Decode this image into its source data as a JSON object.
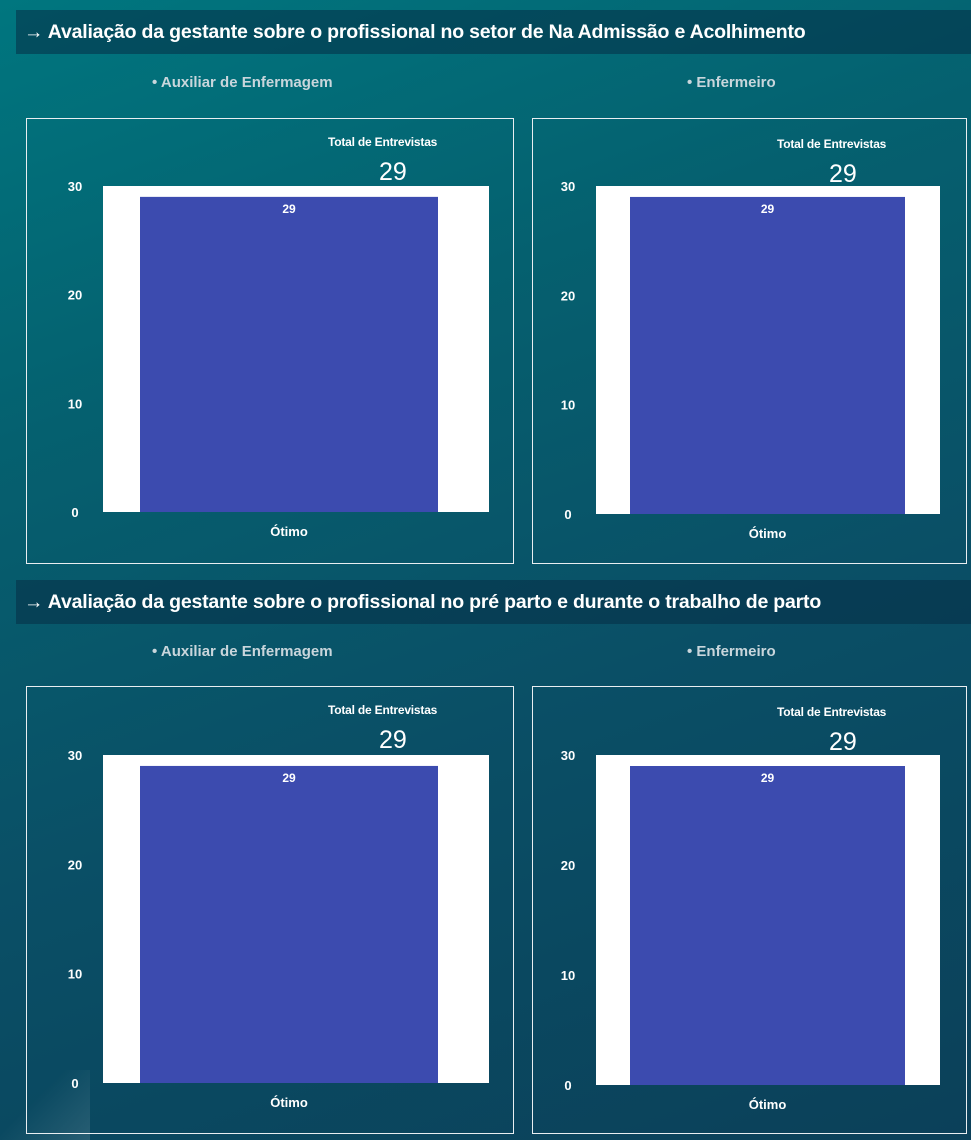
{
  "sections": [
    {
      "title": "→ Avaliação da gestante sobre o profissional  no setor de Na Admissão e Acolhimento",
      "panels": [
        {
          "label": "• Auxiliar de Enfermagem",
          "total_label": "Total de Entrevistas",
          "total_value": "29"
        },
        {
          "label": "• Enfermeiro",
          "total_label": "Total de Entrevistas",
          "total_value": "29"
        }
      ]
    },
    {
      "title": "→ Avaliação da gestante sobre o profissional  no pré parto e durante o trabalho de parto",
      "panels": [
        {
          "label": "• Auxiliar de Enfermagem",
          "total_label": "Total de Entrevistas",
          "total_value": "29"
        },
        {
          "label": "• Enfermeiro",
          "total_label": "Total de Entrevistas",
          "total_value": "29"
        }
      ]
    }
  ],
  "colors": {
    "bar": "#3c4baf",
    "plot_background": "#ffffff",
    "axis_text": "#ffffff",
    "bar_label": "#ffffff"
  },
  "chart_data": [
    {
      "type": "bar",
      "categories": [
        "Ótimo"
      ],
      "values": [
        29
      ],
      "data_labels": [
        "29"
      ],
      "yticks": [
        0,
        10,
        20,
        30
      ],
      "ylim": [
        0,
        30
      ],
      "grid": false,
      "legend": "none"
    },
    {
      "type": "bar",
      "categories": [
        "Ótimo"
      ],
      "values": [
        29
      ],
      "data_labels": [
        "29"
      ],
      "yticks": [
        0,
        10,
        20,
        30
      ],
      "ylim": [
        0,
        30
      ],
      "grid": false,
      "legend": "none"
    },
    {
      "type": "bar",
      "categories": [
        "Ótimo"
      ],
      "values": [
        29
      ],
      "data_labels": [
        "29"
      ],
      "yticks": [
        0,
        10,
        20,
        30
      ],
      "ylim": [
        0,
        30
      ],
      "grid": false,
      "legend": "none"
    },
    {
      "type": "bar",
      "categories": [
        "Ótimo"
      ],
      "values": [
        29
      ],
      "data_labels": [
        "29"
      ],
      "yticks": [
        0,
        10,
        20,
        30
      ],
      "ylim": [
        0,
        30
      ],
      "grid": false,
      "legend": "none"
    }
  ]
}
